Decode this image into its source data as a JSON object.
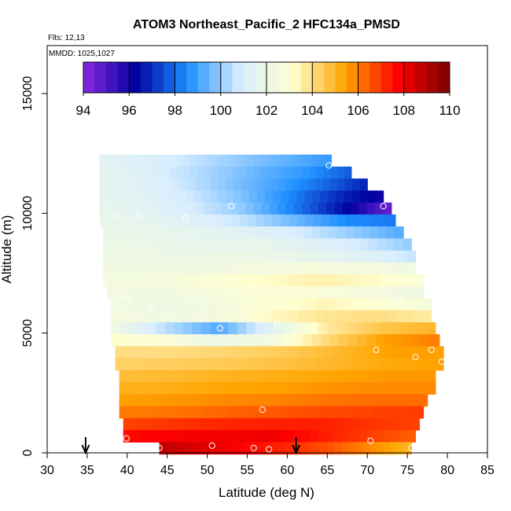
{
  "chart_data": {
    "type": "heatmap",
    "title": "ATOM3 Northeast_Pacific_2 HFC134a_PMSD",
    "flights_label": "Flts: 12,13",
    "dates_label": "MMDD: 1025,1027",
    "xlabel": "Latitude (deg N)",
    "ylabel": "Altitude (m)",
    "xlim": [
      30,
      85
    ],
    "ylim": [
      0,
      17000
    ],
    "x_ticks": [
      30,
      35,
      40,
      45,
      50,
      55,
      60,
      65,
      70,
      75,
      80,
      85
    ],
    "y_ticks": [
      0,
      5000,
      10000,
      15000
    ],
    "colorbar": {
      "min": 94,
      "max": 110,
      "ticks": [
        94,
        96,
        98,
        100,
        102,
        104,
        106,
        108,
        110
      ],
      "colors": [
        "#8a2be2",
        "#0000a0",
        "#1e90ff",
        "#d8eeff",
        "#ffffd0",
        "#ffa500",
        "#ff0000",
        "#7a0000"
      ]
    },
    "arrows_lat": [
      34.8,
      61.1
    ],
    "field_rows": [
      {
        "alt": 12200,
        "lat_min": 36.5,
        "lat_max": 65.5,
        "v": [
          101.5,
          101.2,
          100.8,
          100.3,
          99.8,
          99.3,
          98.8
        ]
      },
      {
        "alt": 11700,
        "lat_min": 36.5,
        "lat_max": 68.0,
        "v": [
          101.6,
          101.2,
          100.6,
          100.0,
          99.3,
          98.7,
          97.7
        ]
      },
      {
        "alt": 11200,
        "lat_min": 36.5,
        "lat_max": 70.0,
        "v": [
          101.6,
          101.3,
          100.6,
          99.8,
          99.0,
          98.0,
          96.8
        ]
      },
      {
        "alt": 10700,
        "lat_min": 36.5,
        "lat_max": 72.0,
        "v": [
          101.7,
          101.3,
          100.7,
          99.8,
          98.5,
          97.0,
          96.0
        ]
      },
      {
        "alt": 10200,
        "lat_min": 36.5,
        "lat_max": 73.0,
        "v": [
          101.8,
          101.4,
          100.8,
          99.9,
          98.3,
          96.5,
          94.5
        ]
      },
      {
        "alt": 9700,
        "lat_min": 36.6,
        "lat_max": 73.5,
        "v": [
          101.9,
          101.6,
          101.2,
          100.5,
          99.5,
          98.5,
          98.2
        ]
      },
      {
        "alt": 9200,
        "lat_min": 37.0,
        "lat_max": 74.5,
        "v": [
          102.0,
          101.8,
          101.6,
          101.3,
          100.8,
          100.0,
          99.2
        ]
      },
      {
        "alt": 8700,
        "lat_min": 37.0,
        "lat_max": 75.5,
        "v": [
          102.1,
          102.0,
          101.8,
          101.8,
          101.3,
          100.8,
          100.0
        ]
      },
      {
        "alt": 8200,
        "lat_min": 37.0,
        "lat_max": 76.0,
        "v": [
          102.2,
          102.1,
          102.0,
          102.0,
          101.8,
          101.3,
          100.6
        ]
      },
      {
        "alt": 7700,
        "lat_min": 37.0,
        "lat_max": 76.0,
        "v": [
          102.3,
          102.3,
          102.3,
          102.5,
          102.6,
          102.5,
          102.3
        ]
      },
      {
        "alt": 7200,
        "lat_min": 37.0,
        "lat_max": 77.0,
        "v": [
          102.4,
          102.5,
          102.9,
          103.2,
          103.5,
          103.3,
          102.8
        ]
      },
      {
        "alt": 6700,
        "lat_min": 37.5,
        "lat_max": 77.0,
        "v": [
          102.4,
          102.3,
          102.6,
          102.9,
          102.8,
          102.5,
          102.2
        ]
      },
      {
        "alt": 6200,
        "lat_min": 38.0,
        "lat_max": 78.0,
        "v": [
          102.3,
          102.2,
          102.4,
          103.0,
          103.4,
          103.0,
          102.6
        ]
      },
      {
        "alt": 5700,
        "lat_min": 38.0,
        "lat_max": 78.0,
        "v": [
          102.5,
          102.3,
          102.4,
          103.3,
          103.8,
          104.0,
          103.6
        ]
      },
      {
        "alt": 5200,
        "lat_min": 38.0,
        "lat_max": 78.5,
        "v": [
          102.3,
          100.5,
          99.2,
          101.5,
          103.7,
          104.6,
          105.0
        ]
      },
      {
        "alt": 4700,
        "lat_min": 38.0,
        "lat_max": 79.0,
        "v": [
          103.2,
          102.8,
          102.0,
          102.5,
          104.2,
          105.5,
          106.0
        ]
      },
      {
        "alt": 4200,
        "lat_min": 38.5,
        "lat_max": 79.5,
        "v": [
          104.0,
          104.0,
          104.2,
          104.4,
          104.9,
          105.5,
          105.5
        ]
      },
      {
        "alt": 3700,
        "lat_min": 38.5,
        "lat_max": 79.5,
        "v": [
          104.3,
          104.4,
          104.5,
          104.7,
          105.0,
          105.3,
          105.5
        ]
      },
      {
        "alt": 3200,
        "lat_min": 39.0,
        "lat_max": 78.5,
        "v": [
          104.8,
          104.9,
          105.1,
          105.2,
          105.4,
          105.6,
          105.6
        ]
      },
      {
        "alt": 2700,
        "lat_min": 39.0,
        "lat_max": 78.5,
        "v": [
          105.1,
          105.2,
          105.4,
          105.5,
          105.7,
          105.8,
          105.8
        ]
      },
      {
        "alt": 2200,
        "lat_min": 39.0,
        "lat_max": 77.5,
        "v": [
          105.5,
          105.6,
          105.8,
          105.9,
          106.1,
          106.2,
          106.2
        ]
      },
      {
        "alt": 1700,
        "lat_min": 39.0,
        "lat_max": 77.0,
        "v": [
          106.0,
          106.1,
          106.3,
          106.5,
          106.7,
          106.8,
          106.9
        ]
      },
      {
        "alt": 1200,
        "lat_min": 39.5,
        "lat_max": 76.5,
        "v": [
          106.8,
          107.0,
          107.2,
          107.3,
          107.3,
          107.0,
          106.8
        ]
      },
      {
        "alt": 700,
        "lat_min": 39.5,
        "lat_max": 76.0,
        "v": [
          107.6,
          107.8,
          107.9,
          108.0,
          107.4,
          106.9,
          106.4
        ]
      },
      {
        "alt": 200,
        "lat_min": 44.0,
        "lat_max": 75.5,
        "v": [
          108.8,
          108.3,
          107.7,
          107.2,
          106.6,
          105.8,
          105.0
        ]
      }
    ],
    "observations": [
      {
        "lat": 65.2,
        "alt": 12000
      },
      {
        "lat": 72.0,
        "alt": 10300
      },
      {
        "lat": 53.0,
        "alt": 10300
      },
      {
        "lat": 38.7,
        "alt": 9900
      },
      {
        "lat": 41.4,
        "alt": 9900
      },
      {
        "lat": 47.3,
        "alt": 9800
      },
      {
        "lat": 37.2,
        "alt": 7200
      },
      {
        "lat": 69.2,
        "alt": 7200
      },
      {
        "lat": 39.3,
        "alt": 6600
      },
      {
        "lat": 40.2,
        "alt": 6400
      },
      {
        "lat": 43.0,
        "alt": 6100
      },
      {
        "lat": 45.1,
        "alt": 5800
      },
      {
        "lat": 49.4,
        "alt": 5800
      },
      {
        "lat": 74.0,
        "alt": 6300
      },
      {
        "lat": 58.7,
        "alt": 5400
      },
      {
        "lat": 51.6,
        "alt": 5200
      },
      {
        "lat": 71.1,
        "alt": 4300
      },
      {
        "lat": 78.0,
        "alt": 4300
      },
      {
        "lat": 76.0,
        "alt": 4000
      },
      {
        "lat": 79.3,
        "alt": 3800
      },
      {
        "lat": 56.9,
        "alt": 1800
      },
      {
        "lat": 39.9,
        "alt": 600
      },
      {
        "lat": 70.4,
        "alt": 500
      },
      {
        "lat": 44.0,
        "alt": 200
      },
      {
        "lat": 50.6,
        "alt": 300
      },
      {
        "lat": 55.8,
        "alt": 200
      },
      {
        "lat": 57.7,
        "alt": 150
      },
      {
        "lat": 75.5,
        "alt": 200
      }
    ]
  }
}
